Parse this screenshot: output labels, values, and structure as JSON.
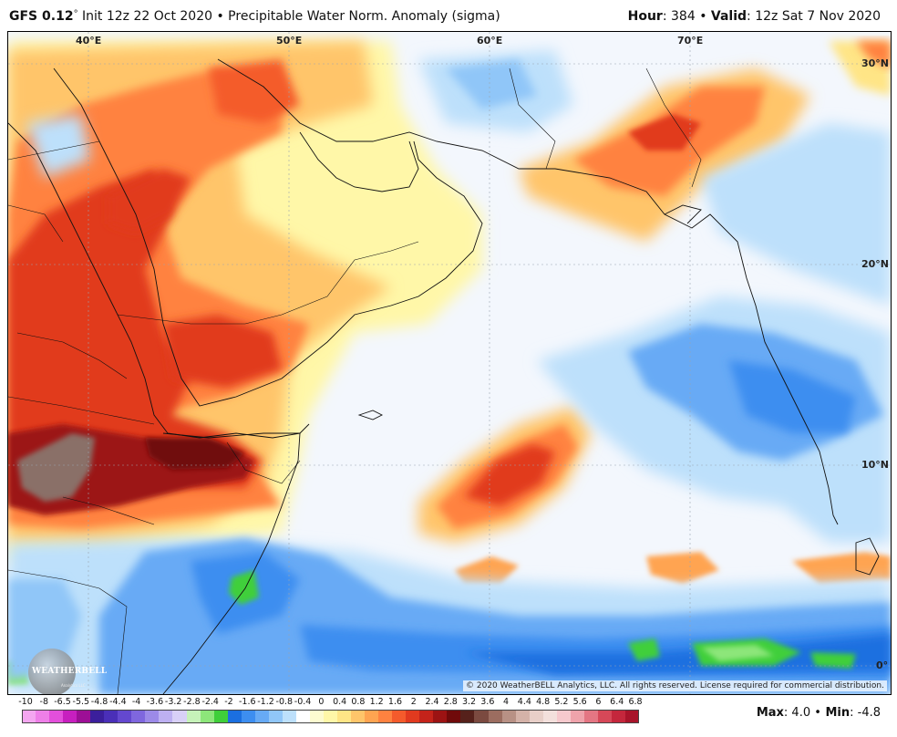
{
  "header": {
    "model": "GFS 0.12",
    "degree": "°",
    "init": " Init 12z 22 Oct 2020 ",
    "bullet": "•",
    "field": " Precipitable Water Norm. Anomaly (sigma)",
    "hour_label": "Hour",
    "hour_value": ": 384 ",
    "valid_label": "Valid",
    "valid_value": ": 12z Sat 7 Nov 2020"
  },
  "map": {
    "lon_labels": [
      "40°E",
      "50°E",
      "60°E",
      "70°E"
    ],
    "lat_labels": [
      "30°N",
      "20°N",
      "10°N",
      "0°"
    ],
    "copyright": "© 2020 WeatherBELL Analytics, LLC. All rights reserved. License required for commercial distribution.",
    "logo_text": "WEATHERBELL",
    "logo_sub": "Analytics LLC"
  },
  "legend": {
    "labels": [
      "-10",
      "-8",
      "-6.5",
      "-5.5",
      "-4.8",
      "-4.4",
      "-4",
      "-3.6",
      "-3.2",
      "-2.8",
      "-2.4",
      "-2",
      "-1.6",
      "-1.2",
      "-0.8",
      "-0.4",
      "0",
      "0.4",
      "0.8",
      "1.2",
      "1.6",
      "2",
      "2.4",
      "2.8",
      "3.2",
      "3.6",
      "4",
      "4.4",
      "4.8",
      "5.2",
      "5.6",
      "6",
      "6.4",
      "6.8"
    ],
    "colors": [
      "#f4a6f0",
      "#ee7fe8",
      "#e34fdb",
      "#c71fbf",
      "#9d0f96",
      "#3b1f9c",
      "#4a2fb8",
      "#6448cf",
      "#7f67de",
      "#9c8ae8",
      "#bdb0f1",
      "#d8d0f7",
      "#c6f2b9",
      "#8de67a",
      "#3fcf3a",
      "#1b6fe0",
      "#3d8ef0",
      "#67aaf5",
      "#90c6f8",
      "#bde0fb",
      "#ffffff",
      "#fdfbd0",
      "#fff7a8",
      "#ffe586",
      "#ffc56a",
      "#ffa451",
      "#ff8240",
      "#f45b2c",
      "#e13a1f",
      "#c4231a",
      "#9c1313",
      "#700a0a",
      "#56211b",
      "#7b4a40",
      "#9c6d60",
      "#b89185",
      "#d4b2a8",
      "#e8cfc8",
      "#f3e0dc",
      "#f6c9cd",
      "#efa3ab",
      "#e47683",
      "#d64858",
      "#c4273c",
      "#a8142a"
    ],
    "max_label": "Max",
    "max_value": ": 4.0 ",
    "bullet": "•",
    "min_label": " Min",
    "min_value": ": -4.8"
  }
}
